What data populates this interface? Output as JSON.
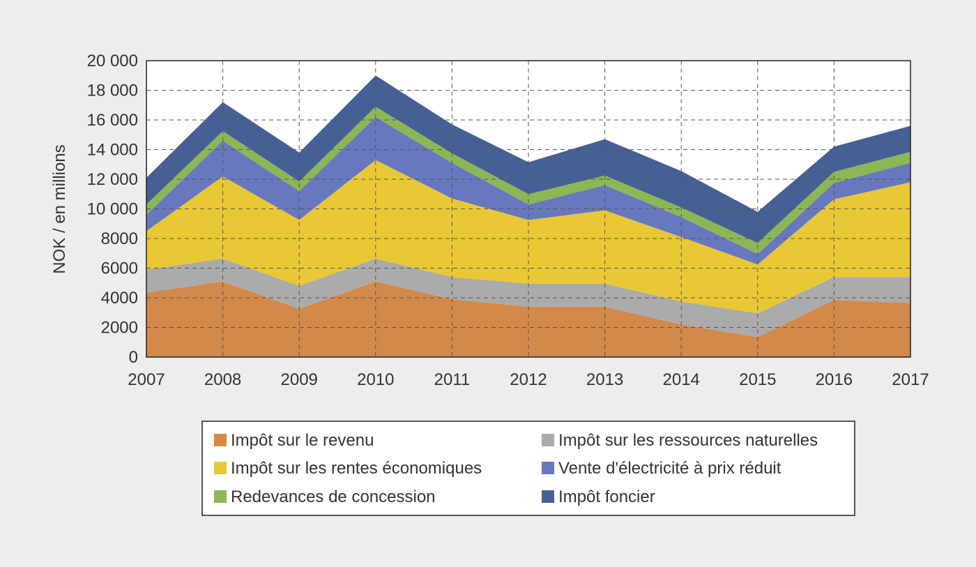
{
  "chart_data": {
    "type": "area",
    "stacked": true,
    "title": "",
    "xlabel": "",
    "ylabel": "NOK / en millions",
    "ylim": [
      0,
      20000
    ],
    "ytick_labels": [
      "0",
      "2000",
      "4000",
      "6000",
      "8000",
      "10 000",
      "12 000",
      "14 000",
      "16 000",
      "18 000",
      "20 000"
    ],
    "x": [
      "2007",
      "2008",
      "2009",
      "2010",
      "2011",
      "2012",
      "2013",
      "2014",
      "2015",
      "2016",
      "2017"
    ],
    "grid": true,
    "legend_position": "bottom",
    "series": [
      {
        "name": "Impôt sur le revenu",
        "color": "#d3894a",
        "values": [
          4350,
          5100,
          3250,
          5100,
          3900,
          3400,
          3400,
          2200,
          1350,
          3850,
          3650
        ]
      },
      {
        "name": "Impôt sur les ressources naturelles",
        "color": "#ababab",
        "values": [
          1550,
          1550,
          1550,
          1550,
          1500,
          1550,
          1550,
          1550,
          1600,
          1550,
          1750
        ]
      },
      {
        "name": "Impôt sur les rentes économiques",
        "color": "#e8c835",
        "values": [
          2600,
          5550,
          4450,
          6650,
          5300,
          4300,
          4950,
          4350,
          3300,
          5250,
          6400
        ]
      },
      {
        "name": "Vente d'électricité à prix réduit",
        "color": "#6878bf",
        "values": [
          1100,
          2400,
          1950,
          2900,
          2400,
          1050,
          1700,
          1350,
          700,
          1100,
          1300
        ]
      },
      {
        "name": "Redevances de concession",
        "color": "#8db654",
        "values": [
          700,
          650,
          650,
          700,
          650,
          700,
          650,
          650,
          750,
          750,
          750
        ]
      },
      {
        "name": "Impôt foncier",
        "color": "#465f95",
        "values": [
          1800,
          1950,
          1950,
          2100,
          1950,
          2150,
          2450,
          2450,
          2100,
          1700,
          1750
        ]
      }
    ]
  }
}
